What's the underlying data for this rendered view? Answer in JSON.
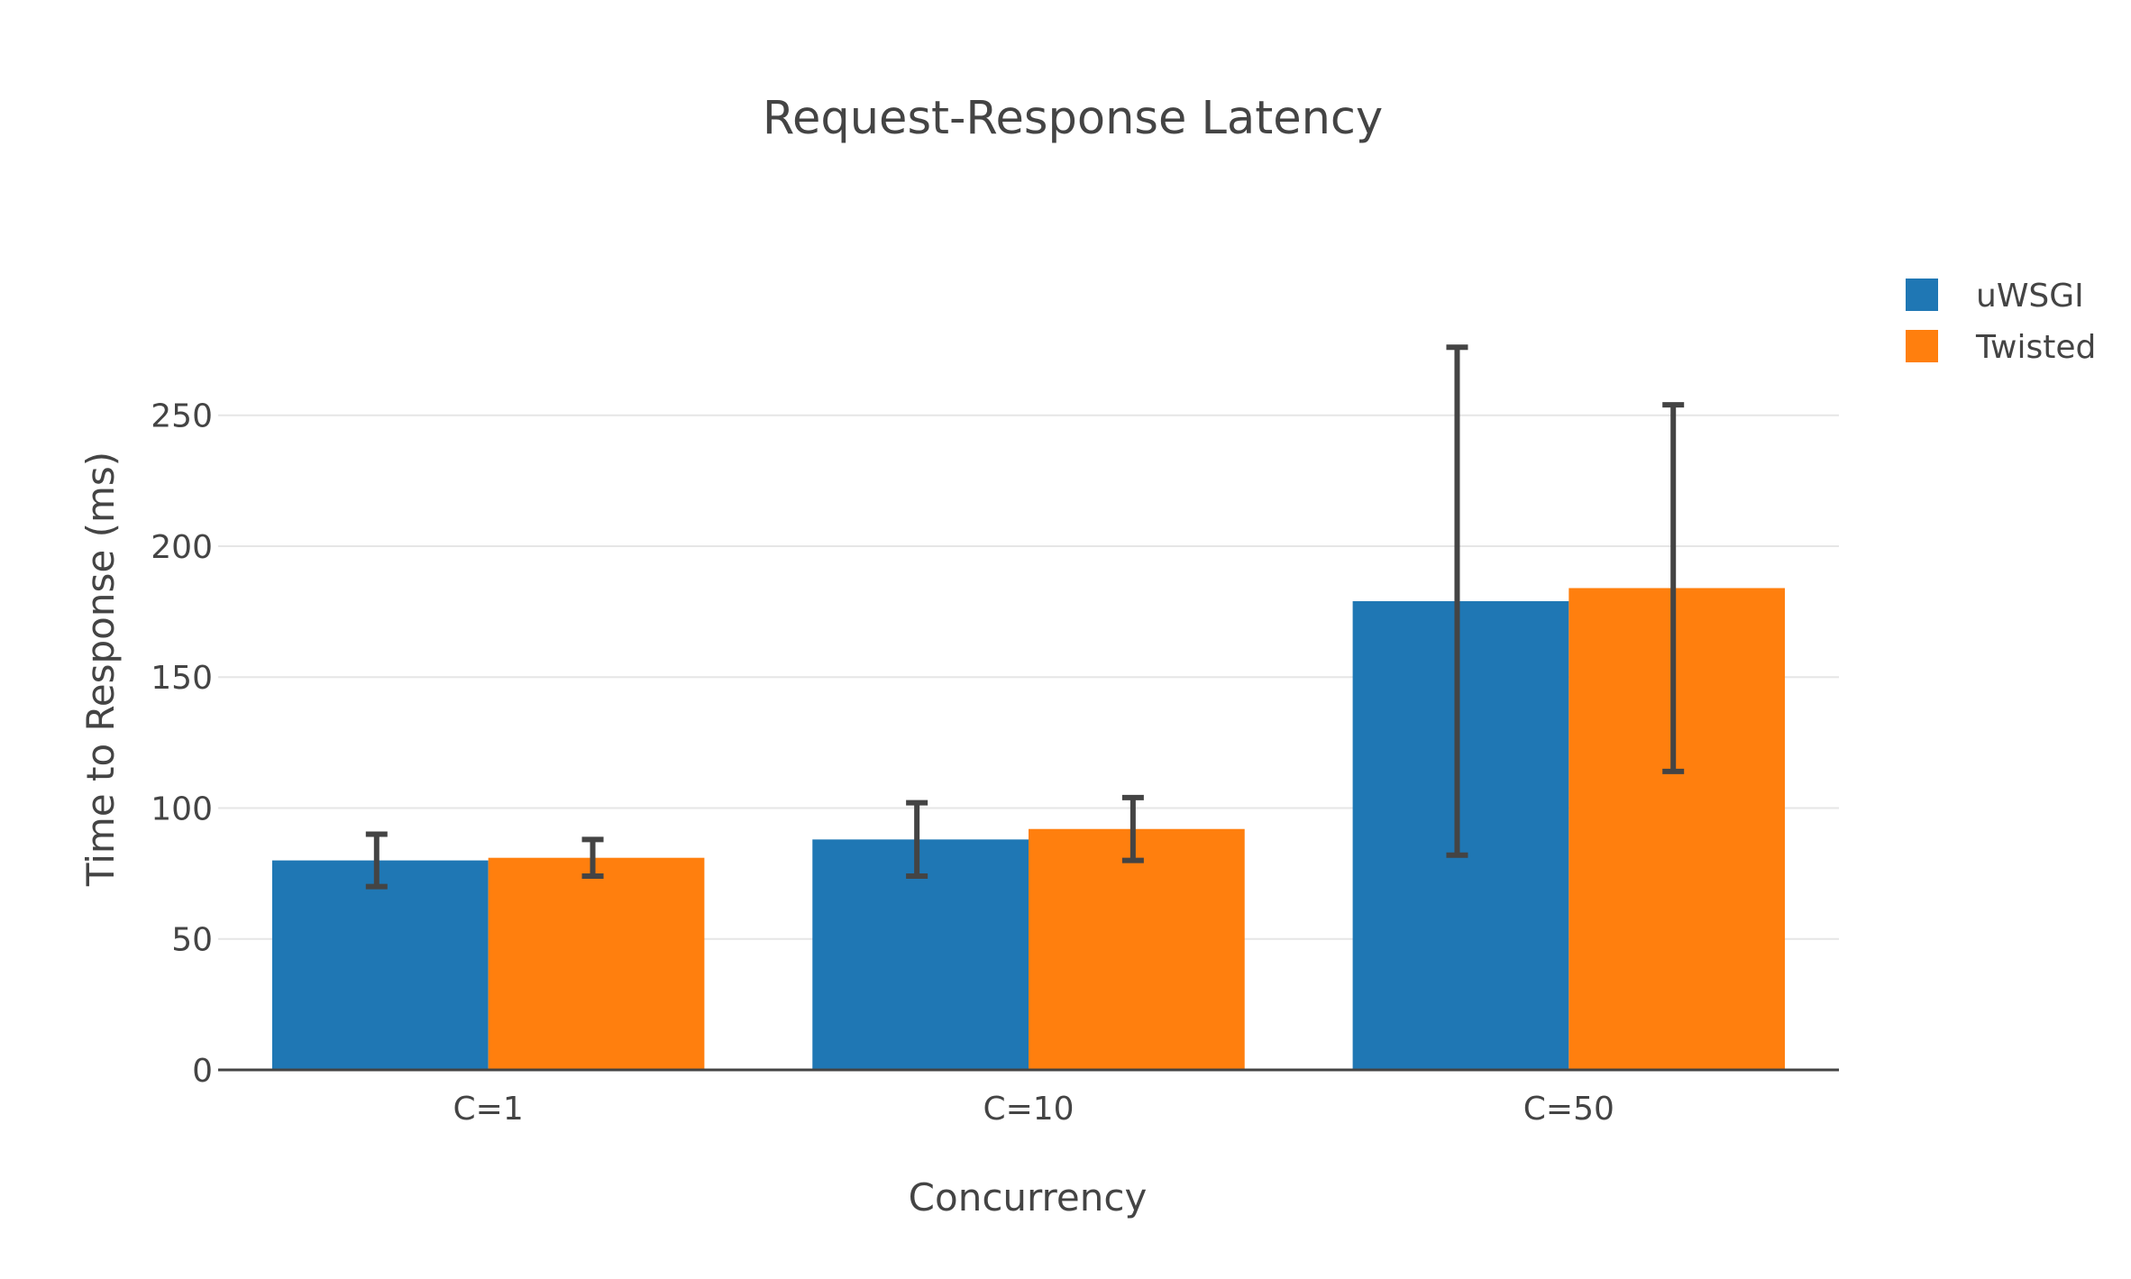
{
  "chart_data": {
    "type": "bar",
    "title": "Request-Response Latency",
    "xlabel": "Concurrency",
    "ylabel": "Time to Response (ms)",
    "categories": [
      "C=1",
      "C=10",
      "C=50"
    ],
    "ylim": [
      0,
      295
    ],
    "yticks": [
      0,
      50,
      100,
      150,
      200,
      250
    ],
    "grid": true,
    "legend_position": "top-right",
    "series": [
      {
        "name": "uWSGI",
        "color": "#1f77b4",
        "values": [
          80,
          88,
          179
        ],
        "error_low": [
          70,
          74,
          82
        ],
        "error_high": [
          90,
          102,
          276
        ]
      },
      {
        "name": "Twisted",
        "color": "#ff7f0e",
        "values": [
          81,
          92,
          184
        ],
        "error_low": [
          74,
          80,
          114
        ],
        "error_high": [
          88,
          104,
          254
        ]
      }
    ],
    "error_bar_color": "#444444",
    "gridline_color": "#e6e6e6",
    "axis_line_color": "#444444"
  }
}
